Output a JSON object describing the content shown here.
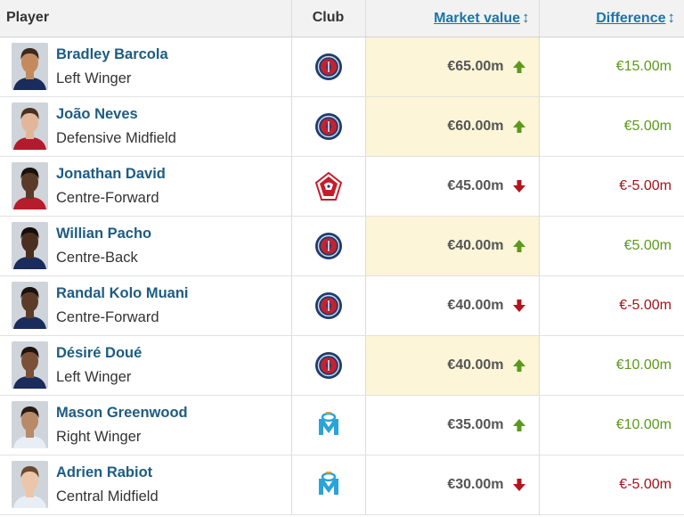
{
  "header": {
    "player": "Player",
    "club": "Club",
    "market_value": "Market value",
    "difference": "Difference",
    "sort_glyph": "↕"
  },
  "colors": {
    "link": "#1d5c82",
    "header_link": "#1d75a3",
    "up": "#5b9a1b",
    "down": "#a3141c",
    "highlight": "#fcf5d7"
  },
  "rows": [
    {
      "name": "Bradley Barcola",
      "position": "Left Winger",
      "club": "psg",
      "value": "€65.00m",
      "trend": "up",
      "difference": "€15.00m",
      "highlight": true,
      "skin": "#c48a5e",
      "hair": "#3a2a1f",
      "shirt": "#1a2c5b"
    },
    {
      "name": "João Neves",
      "position": "Defensive Midfield",
      "club": "psg",
      "value": "€60.00m",
      "trend": "up",
      "difference": "€5.00m",
      "highlight": true,
      "skin": "#e2b69a",
      "hair": "#4a3020",
      "shirt": "#b01c2e"
    },
    {
      "name": "Jonathan David",
      "position": "Centre-Forward",
      "club": "lille",
      "value": "€45.00m",
      "trend": "down",
      "difference": "€-5.00m",
      "highlight": false,
      "skin": "#5a3a28",
      "hair": "#1a120c",
      "shirt": "#b71c2c"
    },
    {
      "name": "Willian Pacho",
      "position": "Centre-Back",
      "club": "psg",
      "value": "€40.00m",
      "trend": "up",
      "difference": "€5.00m",
      "highlight": true,
      "skin": "#4a2e20",
      "hair": "#150e0a",
      "shirt": "#1a2c5b"
    },
    {
      "name": "Randal Kolo Muani",
      "position": "Centre-Forward",
      "club": "psg",
      "value": "€40.00m",
      "trend": "down",
      "difference": "€-5.00m",
      "highlight": false,
      "skin": "#5c3b29",
      "hair": "#1a120c",
      "shirt": "#1a2c5b"
    },
    {
      "name": "Désiré Doué",
      "position": "Left Winger",
      "club": "psg",
      "value": "€40.00m",
      "trend": "up",
      "difference": "€10.00m",
      "highlight": true,
      "skin": "#7a5038",
      "hair": "#1f1510",
      "shirt": "#1a2c5b"
    },
    {
      "name": "Mason Greenwood",
      "position": "Right Winger",
      "club": "om",
      "value": "€35.00m",
      "trend": "up",
      "difference": "€10.00m",
      "highlight": false,
      "skin": "#b88a68",
      "hair": "#2a1c14",
      "shirt": "#e8eef5"
    },
    {
      "name": "Adrien Rabiot",
      "position": "Central Midfield",
      "club": "om",
      "value": "€30.00m",
      "trend": "down",
      "difference": "€-5.00m",
      "highlight": false,
      "skin": "#ecc6a8",
      "hair": "#6a4a30",
      "shirt": "#e8eef5"
    }
  ]
}
